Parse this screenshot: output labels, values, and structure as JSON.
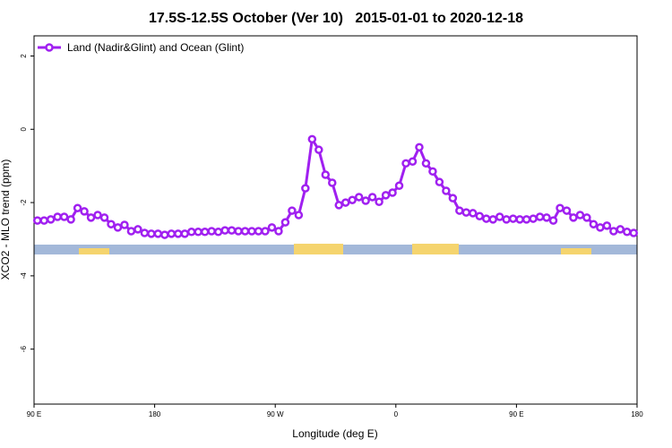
{
  "chart_data": {
    "type": "line",
    "title": "17.5S-12.5S October (Ver 10)   2015-01-01 to 2020-12-18",
    "xlabel": "Longitude (deg E)",
    "ylabel": "XCO2 - MLO trend (ppm)",
    "xlim": [
      90,
      540
    ],
    "ylim": [
      -7.5,
      2.55
    ],
    "xticks": [
      {
        "value": 90,
        "label": "90 E"
      },
      180,
      {
        "value": 270,
        "label": "90 W"
      },
      {
        "value": 360,
        "label": "0"
      },
      {
        "value": 450,
        "label": "90 E"
      },
      {
        "value": 540,
        "label": "180"
      }
    ],
    "yticks": [
      2,
      0,
      -2,
      -4,
      -6
    ],
    "grid": false,
    "legend": "top-left",
    "x": [
      92.5,
      97.5,
      102.5,
      107.5,
      112.5,
      117.5,
      122.5,
      127.5,
      132.5,
      137.5,
      142.5,
      147.5,
      152.5,
      157.5,
      162.5,
      167.5,
      172.5,
      177.5,
      182.5,
      187.5,
      192.5,
      197.5,
      202.5,
      207.5,
      212.5,
      217.5,
      222.5,
      227.5,
      232.5,
      237.5,
      242.5,
      247.5,
      252.5,
      257.5,
      262.5,
      267.5,
      272.5,
      277.5,
      282.5,
      287.5,
      292.5,
      297.5,
      302.5,
      307.5,
      312.5,
      317.5,
      322.5,
      327.5,
      332.5,
      337.5,
      342.5,
      347.5,
      352.5,
      357.5,
      362.5,
      367.5,
      372.5,
      377.5,
      382.5,
      387.5,
      392.5,
      397.5,
      402.5,
      407.5,
      412.5,
      417.5,
      422.5,
      427.5,
      432.5,
      437.5,
      442.5,
      447.5,
      452.5,
      457.5,
      462.5,
      467.5,
      472.5,
      477.5,
      482.5,
      487.5,
      492.5,
      497.5,
      502.5,
      507.5,
      512.5,
      517.5,
      522.5,
      527.5,
      532.5,
      537.5
    ],
    "series": [
      {
        "name": "Land (Nadir&Glint) and Ocean (Glint)",
        "color": "#a020f0",
        "values": [
          -2.49,
          -2.49,
          -2.46,
          -2.39,
          -2.39,
          -2.46,
          -2.15,
          -2.24,
          -2.41,
          -2.34,
          -2.41,
          -2.59,
          -2.68,
          -2.61,
          -2.78,
          -2.73,
          -2.83,
          -2.85,
          -2.85,
          -2.88,
          -2.85,
          -2.85,
          -2.85,
          -2.8,
          -2.8,
          -2.8,
          -2.78,
          -2.8,
          -2.76,
          -2.76,
          -2.78,
          -2.78,
          -2.78,
          -2.78,
          -2.78,
          -2.68,
          -2.78,
          -2.54,
          -2.22,
          -2.34,
          -1.61,
          -0.27,
          -0.56,
          -1.24,
          -1.46,
          -2.07,
          -2.0,
          -1.93,
          -1.85,
          -1.95,
          -1.85,
          -1.98,
          -1.8,
          -1.73,
          -1.54,
          -0.93,
          -0.88,
          -0.49,
          -0.93,
          -1.15,
          -1.44,
          -1.68,
          -1.88,
          -2.22,
          -2.27,
          -2.29,
          -2.37,
          -2.44,
          -2.46,
          -2.39,
          -2.46,
          -2.44,
          -2.46,
          -2.46,
          -2.44,
          -2.39,
          -2.41,
          -2.49,
          -2.15,
          -2.22,
          -2.41,
          -2.34,
          -2.41,
          -2.59,
          -2.68,
          -2.63,
          -2.78,
          -2.73,
          -2.8,
          -2.83
        ]
      }
    ]
  }
}
